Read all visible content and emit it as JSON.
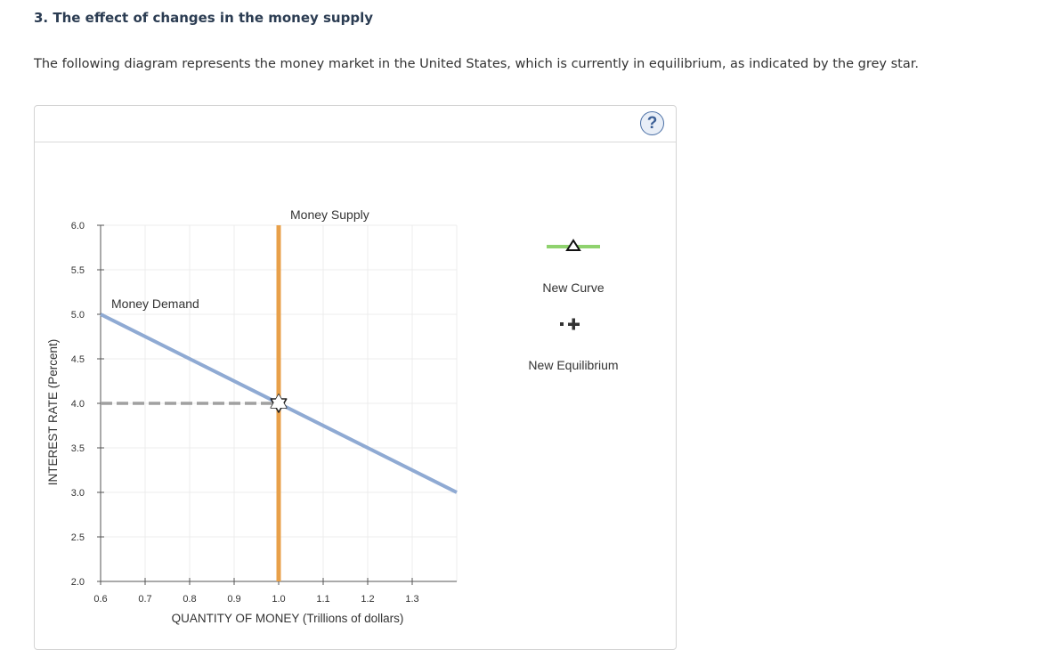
{
  "question": {
    "title": "3. The effect of changes in the money supply",
    "text": "The following diagram represents the money market in the United States, which is currently in equilibrium, as indicated by the grey star."
  },
  "help_button": {
    "label": "?",
    "icon": "question-circle-icon"
  },
  "chart_data": {
    "type": "line",
    "xlabel": "QUANTITY OF MONEY (Trillions of dollars)",
    "ylabel": "INTEREST RATE (Percent)",
    "xlim": [
      0.6,
      1.4
    ],
    "ylim": [
      2.0,
      6.0
    ],
    "x_ticks": [
      "0.6",
      "0.7",
      "0.8",
      "0.9",
      "1.0",
      "1.1",
      "1.2",
      "1.3"
    ],
    "y_ticks": [
      "2.0",
      "2.5",
      "3.0",
      "3.5",
      "4.0",
      "4.5",
      "5.0",
      "5.5",
      "6.0"
    ],
    "grid": true,
    "series": [
      {
        "name": "Money Supply",
        "color": "#e8a04a",
        "points": [
          [
            1.0,
            2.0
          ],
          [
            1.0,
            6.0
          ]
        ]
      },
      {
        "name": "Money Demand",
        "color": "#8faad3",
        "points": [
          [
            0.6,
            5.0
          ],
          [
            1.4,
            3.0
          ]
        ]
      }
    ],
    "equilibrium": {
      "x": 1.0,
      "y": 4.0,
      "marker": "star",
      "color": "#999999"
    },
    "legend_tools": [
      {
        "label": "New Curve",
        "color": "#8fd26e",
        "icon": "triangle-line-icon"
      },
      {
        "label": "New Equilibrium",
        "color": "#333333",
        "icon": "plus-marker-icon"
      }
    ],
    "legend_position": "right"
  }
}
